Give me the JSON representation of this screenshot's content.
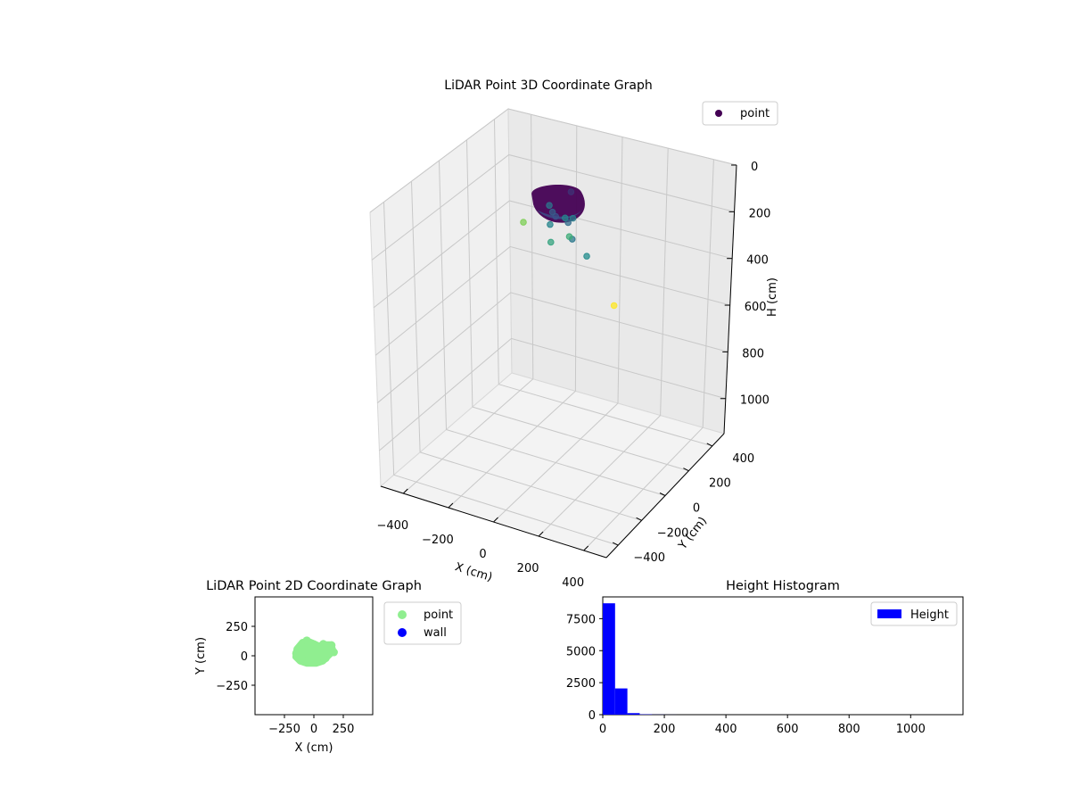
{
  "chart_data": [
    {
      "type": "scatter",
      "title": "LiDAR Point 3D Coordinate Graph",
      "xlabel": "X (cm)",
      "ylabel": "Y (cm)",
      "zlabel": "H (cm)",
      "xlim": [
        -500,
        500
      ],
      "ylim": [
        -500,
        500
      ],
      "zlim": [
        0,
        1150
      ],
      "z_inverted": true,
      "xticks": [
        -400,
        -200,
        0,
        200,
        400
      ],
      "yticks": [
        -400,
        -200,
        0,
        200,
        400
      ],
      "zticks": [
        0,
        200,
        400,
        600,
        800,
        1000
      ],
      "legend": [
        "point"
      ],
      "legend_position": "top-right",
      "colormap": "viridis",
      "cluster": {
        "description": "dense cluster of several thousand points",
        "x_center": 0,
        "y_center": 20,
        "h_center": 60
      },
      "points": [
        {
          "x": 20,
          "y": -40,
          "h": 80,
          "c": 0.25
        },
        {
          "x": -20,
          "y": 10,
          "h": 100,
          "c": 0.3
        },
        {
          "x": 60,
          "y": -10,
          "h": 110,
          "c": 0.35
        },
        {
          "x": 120,
          "y": -90,
          "h": 120,
          "c": 0.4
        },
        {
          "x": -60,
          "y": 60,
          "h": 110,
          "c": 0.38
        },
        {
          "x": 40,
          "y": 70,
          "h": 140,
          "c": 0.42
        },
        {
          "x": -10,
          "y": 100,
          "h": 170,
          "c": 0.45
        },
        {
          "x": -40,
          "y": 30,
          "h": 170,
          "c": 0.45
        },
        {
          "x": 180,
          "y": -80,
          "h": 180,
          "c": 0.48
        },
        {
          "x": -10,
          "y": -20,
          "h": 210,
          "c": 0.58
        },
        {
          "x": 20,
          "y": 80,
          "h": 230,
          "c": 0.62
        },
        {
          "x": -250,
          "y": 210,
          "h": 320,
          "c": 0.8
        },
        {
          "x": 150,
          "y": 220,
          "h": 560,
          "c": 1.0
        },
        {
          "x": 30,
          "y": 70,
          "h": 30,
          "c": 0.15
        }
      ],
      "pane_color": "#f2f2f2",
      "grid": true
    },
    {
      "type": "scatter",
      "title": "LiDAR Point 2D Coordinate Graph",
      "xlabel": "X (cm)",
      "ylabel": "Y (cm)",
      "xlim": [
        -500,
        500
      ],
      "ylim": [
        -500,
        500
      ],
      "xticks": [
        -250,
        0,
        250
      ],
      "yticks": [
        -250,
        0,
        250
      ],
      "legend_position": "outside-right",
      "series": [
        {
          "name": "point",
          "color": "#90ee90",
          "cluster_outline": [
            [
              -150,
              60
            ],
            [
              -100,
              120
            ],
            [
              -50,
              130
            ],
            [
              0,
              110
            ],
            [
              40,
              90
            ],
            [
              90,
              100
            ],
            [
              150,
              100
            ],
            [
              170,
              40
            ],
            [
              130,
              0
            ],
            [
              80,
              -50
            ],
            [
              20,
              -70
            ],
            [
              -60,
              -70
            ],
            [
              -120,
              -50
            ],
            [
              -160,
              -10
            ]
          ],
          "points": [
            [
              -60,
              130
            ],
            [
              -120,
              60
            ],
            [
              -150,
              20
            ],
            [
              150,
              90
            ],
            [
              170,
              30
            ],
            [
              80,
              100
            ],
            [
              0,
              80
            ],
            [
              -40,
              60
            ],
            [
              40,
              40
            ],
            [
              -80,
              -40
            ],
            [
              20,
              -40
            ],
            [
              100,
              -20
            ],
            [
              -100,
              10
            ],
            [
              60,
              70
            ],
            [
              120,
              40
            ]
          ]
        },
        {
          "name": "wall",
          "color": "#0000ff",
          "points": []
        }
      ],
      "grid": false
    },
    {
      "type": "bar",
      "title": "Height Histogram",
      "series_name": "Height",
      "color": "#0000ff",
      "bins": [
        {
          "from": 0,
          "to": 40,
          "count": 8700
        },
        {
          "from": 40,
          "to": 80,
          "count": 2050
        },
        {
          "from": 80,
          "to": 120,
          "count": 120
        },
        {
          "from": 120,
          "to": 160,
          "count": 25
        },
        {
          "from": 160,
          "to": 200,
          "count": 8
        },
        {
          "from": 200,
          "to": 240,
          "count": 3
        }
      ],
      "xlim": [
        0,
        1170
      ],
      "ylim": [
        0,
        9200
      ],
      "xticks": [
        0,
        200,
        400,
        600,
        800,
        1000
      ],
      "yticks": [
        0,
        2500,
        5000,
        7500
      ],
      "legend_position": "top-right",
      "grid": false
    }
  ]
}
